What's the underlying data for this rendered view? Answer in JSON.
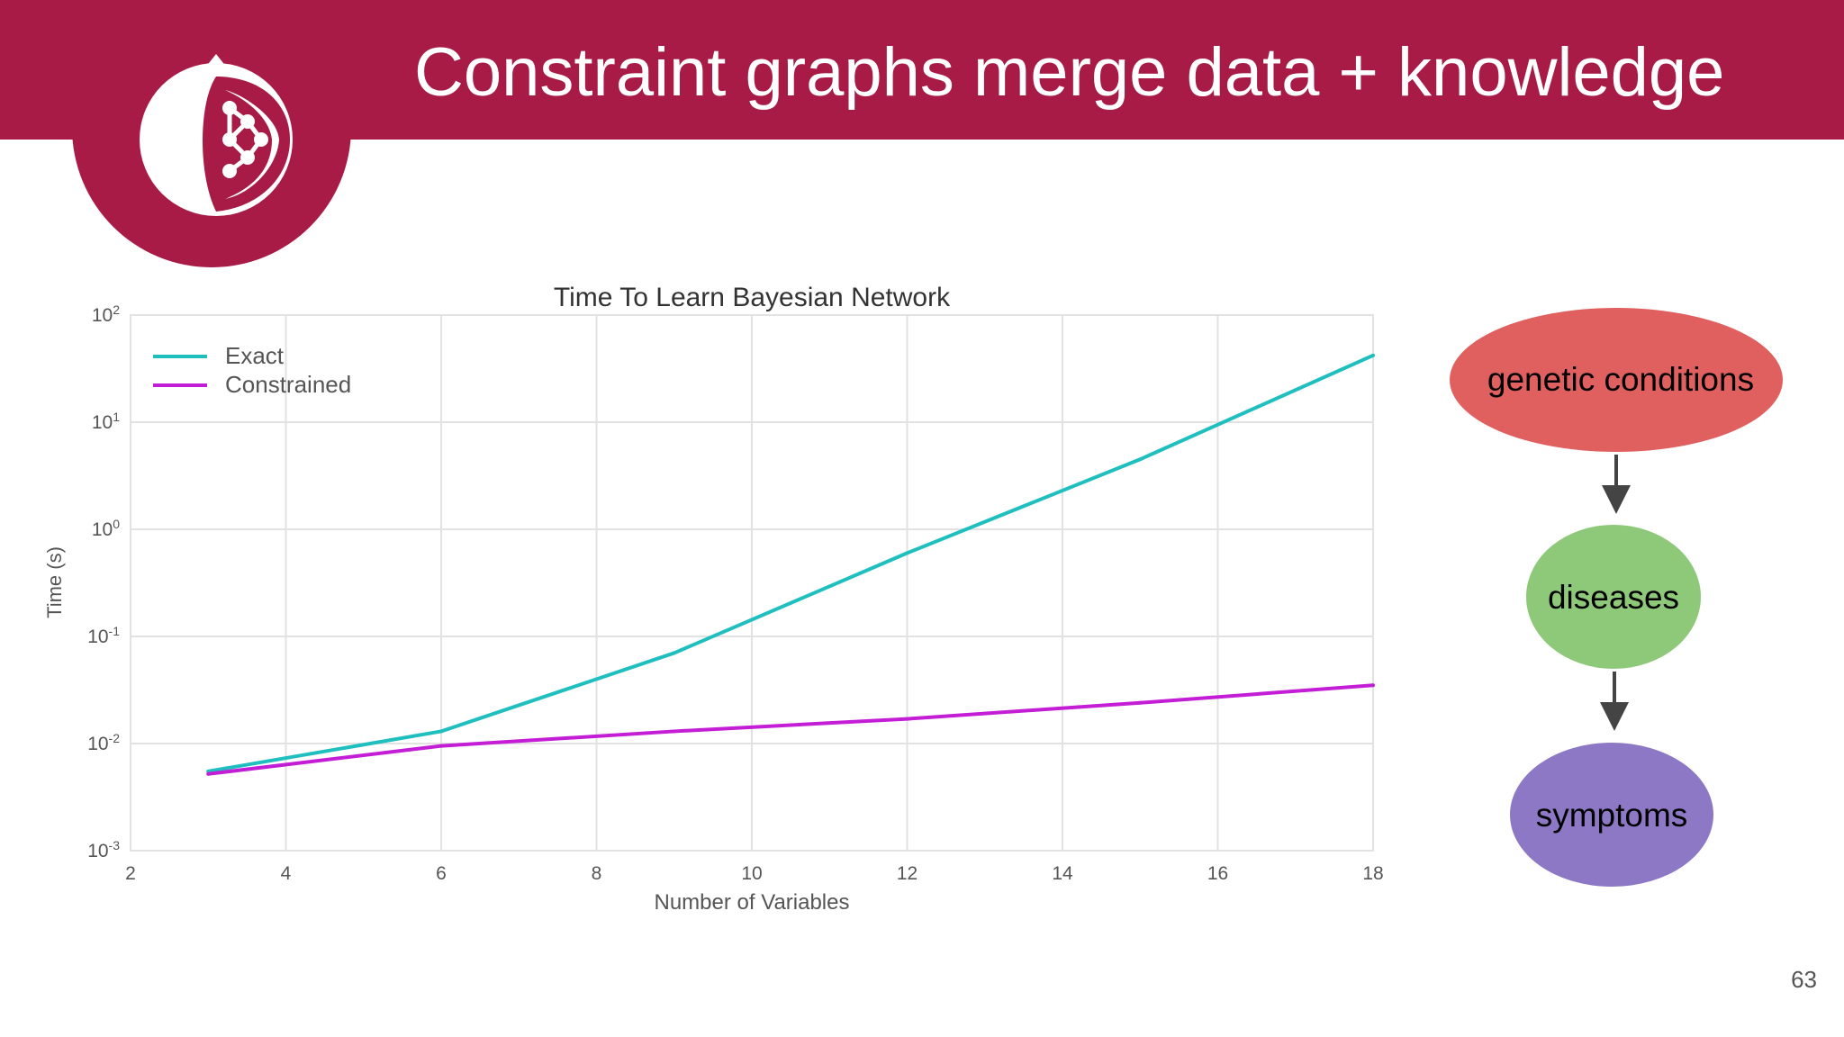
{
  "slide": {
    "title": "Constraint graphs merge data + knowledge",
    "page_number": "63"
  },
  "colors": {
    "header": "#a81b47",
    "exact": "#1fbfbf",
    "constrained": "#c41dd6",
    "node_genetic": "#e06060",
    "node_diseases": "#8ec97a",
    "node_symptoms": "#8c78c4"
  },
  "icons": {
    "logo": "pomegranate-network-icon"
  },
  "chart_data": {
    "type": "line",
    "title": "Time To Learn Bayesian Network",
    "xlabel": "Number of Variables",
    "ylabel": "Time (s)",
    "xlim": [
      2,
      18
    ],
    "ylim": [
      0.001,
      100
    ],
    "yscale": "log",
    "grid": true,
    "legend_position": "top-left",
    "x_ticks": [
      "2",
      "4",
      "6",
      "8",
      "10",
      "12",
      "14",
      "16",
      "18"
    ],
    "y_ticks": [
      {
        "base": "10",
        "exp": "2",
        "value": 100
      },
      {
        "base": "10",
        "exp": "1",
        "value": 10
      },
      {
        "base": "10",
        "exp": "0",
        "value": 1
      },
      {
        "base": "10",
        "exp": "-1",
        "value": 0.1
      },
      {
        "base": "10",
        "exp": "-2",
        "value": 0.01
      },
      {
        "base": "10",
        "exp": "-3",
        "value": 0.001
      }
    ],
    "x": [
      3,
      6,
      9,
      12,
      15,
      18
    ],
    "series": [
      {
        "name": "Exact",
        "values": [
          0.0055,
          0.013,
          0.07,
          0.6,
          4.5,
          42
        ]
      },
      {
        "name": "Constrained",
        "values": [
          0.0052,
          0.0095,
          0.013,
          0.017,
          0.024,
          0.035
        ]
      }
    ]
  },
  "diagram": {
    "nodes": [
      {
        "label": "genetic conditions"
      },
      {
        "label": "diseases"
      },
      {
        "label": "symptoms"
      }
    ]
  }
}
